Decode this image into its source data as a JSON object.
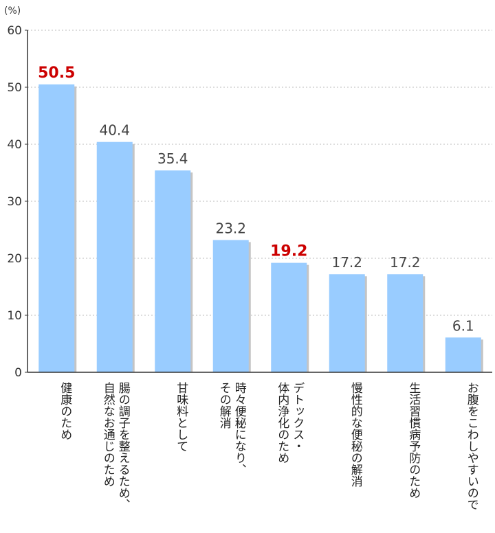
{
  "chart_data": {
    "type": "bar",
    "unit_label": "(%)",
    "title": "",
    "xlabel": "",
    "ylabel": "",
    "ylim": [
      0,
      60
    ],
    "yticks": [
      0,
      10,
      20,
      30,
      40,
      50,
      60
    ],
    "grid": true,
    "categories": [
      [
        "健康のため"
      ],
      [
        "腸の調子を整えるため、",
        "自然なお通じのため"
      ],
      [
        "甘味料として"
      ],
      [
        "時々便秘になり、",
        "その解消"
      ],
      [
        "デトックス・",
        "体内浄化のため"
      ],
      [
        "慢性的な便秘の解消"
      ],
      [
        "生活習慣病予防のため"
      ],
      [
        "お腹をこわしやすいので"
      ]
    ],
    "values": [
      "50.5",
      "40.4",
      "35.4",
      "23.2",
      "19.2",
      "17.2",
      "17.2",
      "6.1"
    ],
    "highlighted": [
      0,
      4
    ],
    "colors": {
      "bar": "#99ccff",
      "bar_shadow": "#c4c4c4",
      "highlight_label": "#cc0000",
      "grid": "#bbbbbb",
      "axis": "#333333"
    }
  }
}
